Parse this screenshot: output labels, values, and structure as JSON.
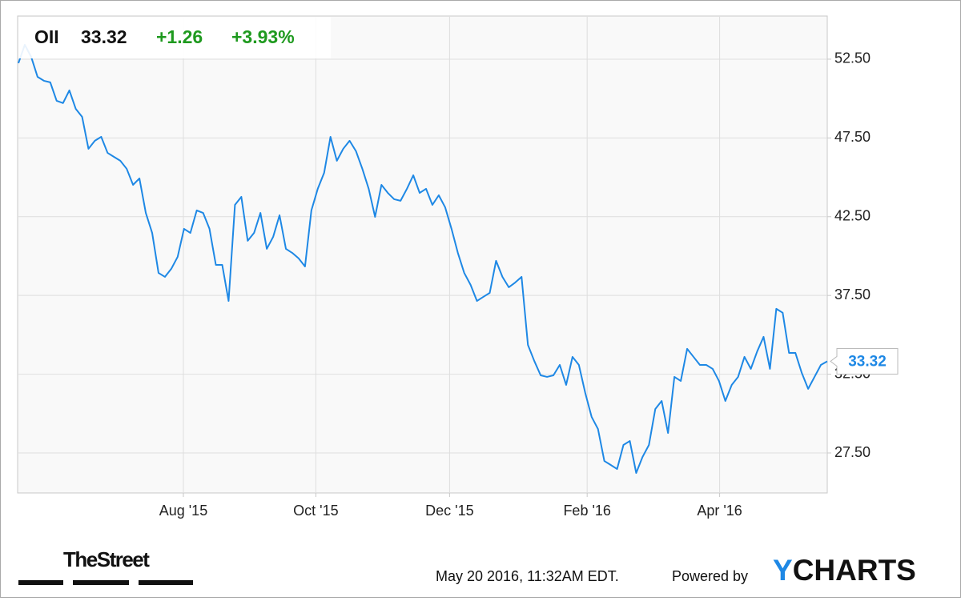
{
  "header": {
    "ticker": "OII",
    "price": "33.32",
    "change": "+1.26",
    "change_pct": "+3.93%"
  },
  "chart_data": {
    "type": "line",
    "color": "#1e88e5",
    "grid": true,
    "values": [
      52.25,
      53.41,
      52.65,
      51.38,
      51.13,
      51.03,
      49.86,
      49.71,
      50.52,
      49.35,
      48.84,
      46.81,
      47.32,
      47.57,
      46.55,
      46.3,
      46.05,
      45.54,
      44.52,
      44.93,
      42.74,
      41.47,
      38.93,
      38.68,
      39.19,
      39.95,
      41.73,
      41.47,
      42.9,
      42.74,
      41.73,
      39.44,
      39.44,
      37.15,
      43.25,
      43.76,
      40.97,
      41.47,
      42.74,
      40.46,
      41.22,
      42.59,
      40.46,
      40.2,
      39.85,
      39.34,
      42.9,
      44.27,
      45.28,
      47.57,
      46.05,
      46.81,
      47.32,
      46.66,
      45.54,
      44.27,
      42.49,
      44.52,
      44.01,
      43.61,
      43.51,
      44.27,
      45.13,
      44.01,
      44.27,
      43.25,
      43.86,
      43.1,
      41.73,
      40.2,
      38.93,
      38.17,
      37.15,
      37.41,
      37.66,
      39.7,
      38.68,
      38.02,
      38.32,
      38.68,
      34.36,
      33.34,
      32.43,
      32.33,
      32.43,
      33.09,
      31.82,
      33.6,
      33.09,
      31.31,
      29.79,
      29.02,
      26.99,
      26.74,
      26.48,
      28.01,
      28.26,
      26.23,
      27.25,
      28.01,
      30.29,
      30.8,
      28.77,
      32.33,
      32.07,
      34.11,
      33.6,
      33.09,
      33.09,
      32.84,
      32.07,
      30.8,
      31.82,
      32.33,
      33.6,
      32.84,
      33.95,
      34.87,
      32.84,
      36.65,
      36.4,
      33.85,
      33.85,
      32.58,
      31.57,
      32.33,
      33.09,
      33.32
    ],
    "xlim": [
      0,
      127
    ],
    "xticks": [
      {
        "value": 25.9,
        "label": "Aug '15"
      },
      {
        "value": 46.7,
        "label": "Oct '15"
      },
      {
        "value": 67.7,
        "label": "Dec '15"
      },
      {
        "value": 89.3,
        "label": "Feb '16"
      },
      {
        "value": 110.1,
        "label": "Apr '16"
      }
    ],
    "ylim": [
      24.96,
      55.19
    ],
    "yticks": [
      {
        "value": 27.5,
        "label": "27.50"
      },
      {
        "value": 32.5,
        "label": "32.50"
      },
      {
        "value": 37.5,
        "label": "37.50"
      },
      {
        "value": 42.5,
        "label": "42.50"
      },
      {
        "value": 47.5,
        "label": "47.50"
      },
      {
        "value": 52.5,
        "label": "52.50"
      }
    ]
  },
  "footer": {
    "publisher": "TheStreet",
    "timestamp": "May 20 2016, 11:32AM EDT.",
    "powered_by": "Powered by",
    "brand_y": "Y",
    "brand_rest": "CHARTS"
  }
}
